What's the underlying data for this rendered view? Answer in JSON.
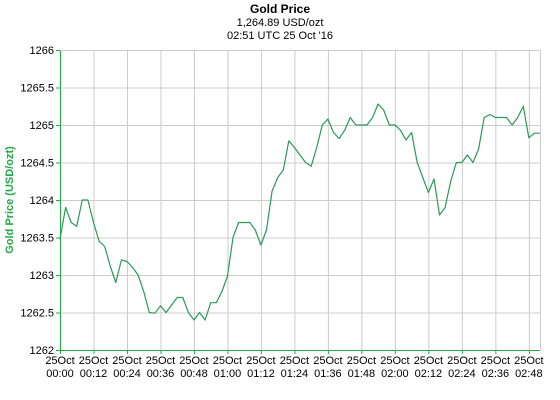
{
  "chart_data": {
    "type": "line",
    "title": "Gold Price",
    "subtitle_price": "1,264.89 USD/ozt",
    "subtitle_time": "02:51 UTC 25 Oct '16",
    "ylabel": "Gold Price (USD/ozt)",
    "xlabel": "",
    "ylim": [
      1262,
      1266
    ],
    "y_ticks": [
      1262,
      1262.5,
      1263,
      1263.5,
      1264,
      1264.5,
      1265,
      1265.5,
      1266
    ],
    "y_tick_labels": [
      "1262",
      "1262.5",
      "1263",
      "1263.5",
      "1264",
      "1264.5",
      "1265",
      "1265.5",
      "1266"
    ],
    "x_range_minutes": [
      0,
      172
    ],
    "x_ticks": [
      {
        "date": "25Oct",
        "time": "00:00",
        "minute": 0
      },
      {
        "date": "25Oct",
        "time": "00:12",
        "minute": 12
      },
      {
        "date": "25Oct",
        "time": "00:24",
        "minute": 24
      },
      {
        "date": "25Oct",
        "time": "00:36",
        "minute": 36
      },
      {
        "date": "25Oct",
        "time": "00:48",
        "minute": 48
      },
      {
        "date": "25Oct",
        "time": "01:00",
        "minute": 60
      },
      {
        "date": "25Oct",
        "time": "01:12",
        "minute": 72
      },
      {
        "date": "25Oct",
        "time": "01:24",
        "minute": 84
      },
      {
        "date": "25Oct",
        "time": "01:36",
        "minute": 96
      },
      {
        "date": "25Oct",
        "time": "01:48",
        "minute": 108
      },
      {
        "date": "25Oct",
        "time": "02:00",
        "minute": 120
      },
      {
        "date": "25Oct",
        "time": "02:12",
        "minute": 132
      },
      {
        "date": "25Oct",
        "time": "02:24",
        "minute": 144
      },
      {
        "date": "25Oct",
        "time": "02:36",
        "minute": 156
      },
      {
        "date": "25Oct",
        "time": "02:48",
        "minute": 168
      }
    ],
    "grid": true,
    "colors": {
      "line": "#2b9a58",
      "axis": "#22aa44",
      "grid": "#cccccc",
      "ylabel": "#22aa44"
    },
    "series": [
      {
        "x_minutes": [
          0,
          2,
          4,
          6,
          8,
          10,
          12,
          14,
          16,
          18,
          20,
          22,
          24,
          26,
          28,
          30,
          32,
          34,
          36,
          38,
          40,
          42,
          44,
          46,
          48,
          50,
          52,
          54,
          56,
          58,
          60,
          62,
          64,
          66,
          68,
          70,
          72,
          74,
          76,
          78,
          80,
          82,
          84,
          86,
          88,
          90,
          92,
          94,
          96,
          98,
          100,
          102,
          104,
          106,
          108,
          110,
          112,
          114,
          116,
          118,
          120,
          122,
          124,
          126,
          128,
          130,
          132,
          134,
          136,
          138,
          140,
          142,
          144,
          146,
          148,
          150,
          152,
          154,
          156,
          158,
          160,
          162,
          164,
          166,
          168,
          170,
          172
        ],
        "values": [
          1263.48,
          1263.9,
          1263.7,
          1263.65,
          1264.0,
          1264.0,
          1263.7,
          1263.45,
          1263.38,
          1263.12,
          1262.9,
          1263.2,
          1263.18,
          1263.1,
          1263.0,
          1262.78,
          1262.5,
          1262.49,
          1262.59,
          1262.5,
          1262.6,
          1262.7,
          1262.7,
          1262.5,
          1262.4,
          1262.5,
          1262.4,
          1262.63,
          1262.63,
          1262.78,
          1262.98,
          1263.5,
          1263.7,
          1263.7,
          1263.7,
          1263.6,
          1263.4,
          1263.6,
          1264.12,
          1264.3,
          1264.4,
          1264.79,
          1264.7,
          1264.6,
          1264.5,
          1264.45,
          1264.7,
          1265.0,
          1265.08,
          1264.9,
          1264.82,
          1264.93,
          1265.1,
          1265.0,
          1265.0,
          1265.0,
          1265.1,
          1265.28,
          1265.2,
          1265.0,
          1265.0,
          1264.93,
          1264.8,
          1264.9,
          1264.5,
          1264.3,
          1264.1,
          1264.28,
          1263.8,
          1263.9,
          1264.25,
          1264.5,
          1264.5,
          1264.6,
          1264.5,
          1264.68,
          1265.1,
          1265.14,
          1265.1,
          1265.1,
          1265.1,
          1265.0,
          1265.1,
          1265.25,
          1264.83,
          1264.89,
          1264.89
        ]
      }
    ]
  }
}
